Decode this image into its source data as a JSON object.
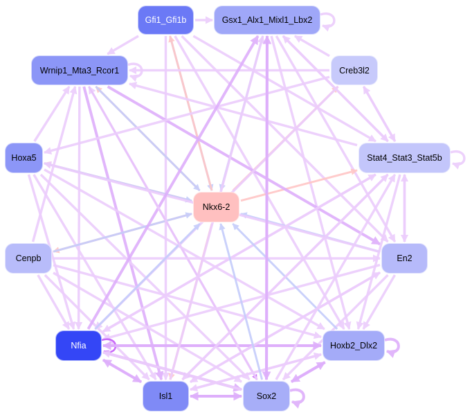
{
  "edge_palette": {
    "light": "#eccdfc",
    "medium": "#deaffb",
    "strong": "#c55cf9",
    "blue": "#c5cdfb",
    "red": "#ffc6c6"
  },
  "nodes": [
    {
      "id": "gfi1",
      "label": "Gfi1_Gfi1b",
      "color": "#6b79f6",
      "text_color": "#ffffff"
    },
    {
      "id": "gsx1",
      "label": "Gsx1_Alx1_Mixl1_Lbx2",
      "color": "#9fa7f8",
      "text_color": "#000000"
    },
    {
      "id": "wrnip1",
      "label": "Wrnip1_Mta3_Rcor1",
      "color": "#8c96f7",
      "text_color": "#000000"
    },
    {
      "id": "creb3l2",
      "label": "Creb3l2",
      "color": "#c7cafb",
      "text_color": "#000000"
    },
    {
      "id": "hoxa5",
      "label": "Hoxa5",
      "color": "#8c96f7",
      "text_color": "#000000"
    },
    {
      "id": "stat4",
      "label": "Stat4_Stat3_Stat5b",
      "color": "#c3c6fb",
      "text_color": "#000000"
    },
    {
      "id": "nkx62",
      "label": "Nkx6-2",
      "color": "#ffc0c0",
      "text_color": "#000000"
    },
    {
      "id": "cenpb",
      "label": "Cenpb",
      "color": "#b8bcfa",
      "text_color": "#000000"
    },
    {
      "id": "en2",
      "label": "En2",
      "color": "#b6bafa",
      "text_color": "#000000"
    },
    {
      "id": "nfia",
      "label": "Nfia",
      "color": "#3446f6",
      "text_color": "#ffffff"
    },
    {
      "id": "hoxb2",
      "label": "Hoxb2_Dlx2",
      "color": "#a4abf8",
      "text_color": "#000000"
    },
    {
      "id": "isl1",
      "label": "Isl1",
      "color": "#7f8af6",
      "text_color": "#000000"
    },
    {
      "id": "sox2",
      "label": "Sox2",
      "color": "#a7aef8",
      "text_color": "#000000"
    }
  ],
  "edges": [
    [
      "gfi1",
      "gsx1",
      "light"
    ],
    [
      "gfi1",
      "wrnip1",
      "light"
    ],
    [
      "gfi1",
      "isl1",
      "light"
    ],
    [
      "gfi1",
      "nkx62",
      "blue"
    ],
    [
      "gfi1",
      "hoxb2",
      "light"
    ],
    [
      "gfi1",
      "stat4",
      "light"
    ],
    [
      "gfi1",
      "en2",
      "light"
    ],
    [
      "gsx1",
      "gsx1",
      "light"
    ],
    [
      "gsx1",
      "sox2",
      "medium"
    ],
    [
      "gsx1",
      "stat4",
      "light"
    ],
    [
      "gsx1",
      "en2",
      "light"
    ],
    [
      "gsx1",
      "hoxb2",
      "light"
    ],
    [
      "gsx1",
      "nkx62",
      "blue"
    ],
    [
      "nkx62",
      "gfi1",
      "red"
    ],
    [
      "nkx62",
      "creb3l2",
      "red"
    ],
    [
      "nkx62",
      "stat4",
      "red"
    ],
    [
      "nkx62",
      "isl1",
      "red"
    ],
    [
      "nkx62",
      "wrnip1",
      "red"
    ],
    [
      "nkx62",
      "hoxa5",
      "red"
    ],
    [
      "nkx62",
      "cenpb",
      "red"
    ],
    [
      "wrnip1",
      "wrnip1",
      "light"
    ],
    [
      "wrnip1",
      "sox2",
      "strong"
    ],
    [
      "wrnip1",
      "isl1",
      "medium"
    ],
    [
      "wrnip1",
      "nkx62",
      "blue"
    ],
    [
      "wrnip1",
      "nfia",
      "light"
    ],
    [
      "wrnip1",
      "en2",
      "medium"
    ],
    [
      "creb3l2",
      "wrnip1",
      "light"
    ],
    [
      "creb3l2",
      "gsx1",
      "light"
    ],
    [
      "creb3l2",
      "hoxa5",
      "light"
    ],
    [
      "creb3l2",
      "nfia",
      "light"
    ],
    [
      "creb3l2",
      "stat4",
      "light"
    ],
    [
      "stat4",
      "stat4",
      "light"
    ],
    [
      "stat4",
      "creb3l2",
      "light"
    ],
    [
      "stat4",
      "en2",
      "light"
    ],
    [
      "en2",
      "stat4",
      "light"
    ],
    [
      "stat4",
      "nfia",
      "light"
    ],
    [
      "stat4",
      "isl1",
      "light"
    ],
    [
      "stat4",
      "hoxb2",
      "light"
    ],
    [
      "stat4",
      "gsx1",
      "light"
    ],
    [
      "stat4",
      "wrnip1",
      "light"
    ],
    [
      "hoxa5",
      "nfia",
      "light"
    ],
    [
      "hoxa5",
      "isl1",
      "light"
    ],
    [
      "hoxa5",
      "sox2",
      "light"
    ],
    [
      "hoxa5",
      "hoxb2",
      "light"
    ],
    [
      "hoxa5",
      "nkx62",
      "blue"
    ],
    [
      "hoxa5",
      "wrnip1",
      "light"
    ],
    [
      "cenpb",
      "en2",
      "light"
    ],
    [
      "cenpb",
      "nfia",
      "light"
    ],
    [
      "cenpb",
      "isl1",
      "light"
    ],
    [
      "cenpb",
      "sox2",
      "light"
    ],
    [
      "cenpb",
      "wrnip1",
      "light"
    ],
    [
      "cenpb",
      "nkx62",
      "blue"
    ],
    [
      "cenpb",
      "hoxb2",
      "light"
    ],
    [
      "en2",
      "nkx62",
      "blue"
    ],
    [
      "en2",
      "nfia",
      "light"
    ],
    [
      "en2",
      "isl1",
      "light"
    ],
    [
      "en2",
      "sox2",
      "light"
    ],
    [
      "en2",
      "hoxb2",
      "light"
    ],
    [
      "en2",
      "hoxa5",
      "light"
    ],
    [
      "nfia",
      "nfia",
      "strong"
    ],
    [
      "nfia",
      "hoxb2",
      "medium"
    ],
    [
      "nfia",
      "isl1",
      "medium"
    ],
    [
      "nfia",
      "sox2",
      "medium"
    ],
    [
      "nfia",
      "nkx62",
      "blue"
    ],
    [
      "nfia",
      "gsx1",
      "medium"
    ],
    [
      "nfia",
      "stat4",
      "light"
    ],
    [
      "hoxb2",
      "hoxb2",
      "medium"
    ],
    [
      "hoxb2",
      "nkx62",
      "blue"
    ],
    [
      "hoxb2",
      "sox2",
      "medium"
    ],
    [
      "hoxb2",
      "nfia",
      "medium"
    ],
    [
      "hoxb2",
      "isl1",
      "light"
    ],
    [
      "isl1",
      "sox2",
      "medium"
    ],
    [
      "sox2",
      "isl1",
      "medium"
    ],
    [
      "isl1",
      "nfia",
      "medium"
    ],
    [
      "isl1",
      "gsx1",
      "light"
    ],
    [
      "isl1",
      "stat4",
      "light"
    ],
    [
      "isl1",
      "en2",
      "light"
    ],
    [
      "isl1",
      "hoxb2",
      "light"
    ],
    [
      "sox2",
      "sox2",
      "medium"
    ],
    [
      "sox2",
      "nkx62",
      "blue"
    ],
    [
      "sox2",
      "nfia",
      "light"
    ],
    [
      "sox2",
      "hoxb2",
      "medium"
    ],
    [
      "sox2",
      "stat4",
      "light"
    ],
    [
      "sox2",
      "wrnip1",
      "light"
    ],
    [
      "sox2",
      "gsx1",
      "medium"
    ]
  ]
}
